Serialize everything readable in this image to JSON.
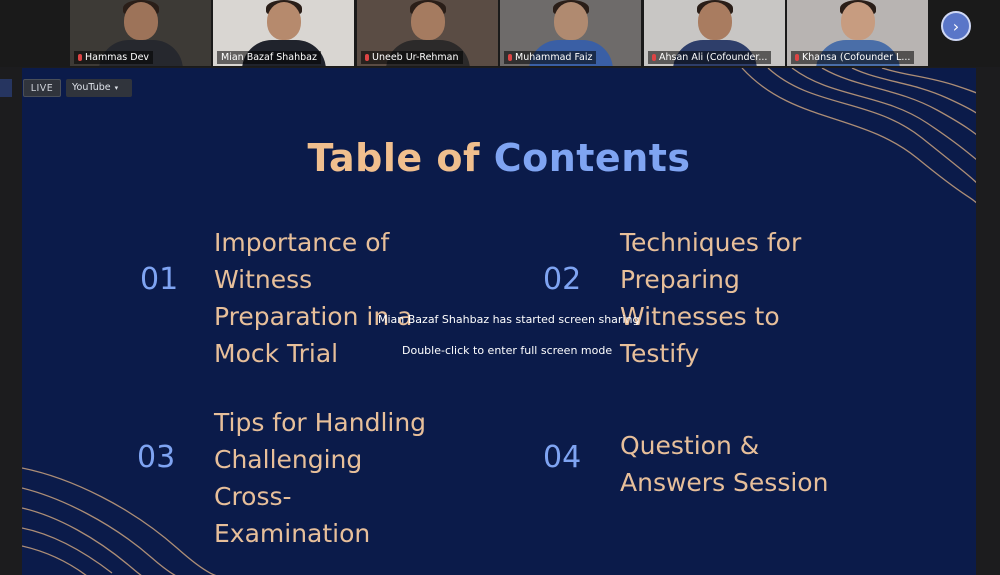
{
  "participants": [
    {
      "name": "Hammas Dev",
      "bg": "#3d3a36",
      "skin": "#9d7359",
      "shirt": "#26282e"
    },
    {
      "name": "Mian Bazaf Shahbaz",
      "bg": "#d9d6d2",
      "skin": "#b68a6d",
      "shirt": "#20232c"
    },
    {
      "name": "Uneeb Ur-Rehman",
      "bg": "#5a4c44",
      "skin": "#a57b60",
      "shirt": "#2c2a2a"
    },
    {
      "name": "Muhammad Faiz",
      "bg": "#6e6b6a",
      "skin": "#b08a70",
      "shirt": "#3a5fa5"
    },
    {
      "name": "Ahsan Ali (Cofounder...",
      "bg": "#c8c6c4",
      "skin": "#a97c60",
      "shirt": "#2e3e6a"
    },
    {
      "name": "Khansa (Cofounder L...",
      "bg": "#b8b4b2",
      "skin": "#c79c80",
      "shirt": "#4a6ea8"
    }
  ],
  "toolbar": {
    "live_label": "LIVE",
    "youtube_label": "YouTube",
    "caret": "▾",
    "next_icon": "›"
  },
  "slide": {
    "title_part1": "Table of ",
    "title_part2": "Contents",
    "items": [
      {
        "number": "01",
        "text": "Importance of\nWitness\nPreparation in a\nMock Trial"
      },
      {
        "number": "02",
        "text": "Techniques for\nPreparing\nWitnesses to\nTestify"
      },
      {
        "number": "03",
        "text": "Tips for Handling\nChallenging\nCross-\nExamination"
      },
      {
        "number": "04",
        "text": "Question &\nAnswers Session"
      }
    ]
  },
  "overlay": {
    "sharing_message": "Mian Bazaf Shahbaz has started screen sharing",
    "fullscreen_hint": "Double-click to enter full screen mode"
  },
  "colors": {
    "slide_bg": "#0b1b4a",
    "title_orange": "#f0bf8e",
    "title_blue": "#7fa4f2",
    "item_text": "#e7bf9a",
    "wave_line": "#c9a27e"
  }
}
